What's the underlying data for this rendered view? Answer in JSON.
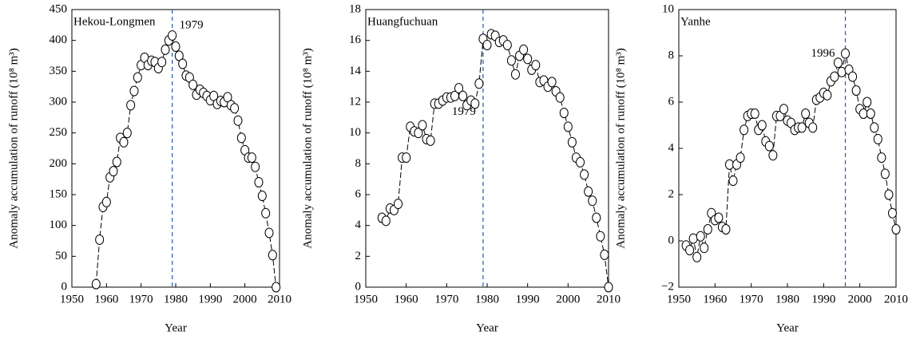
{
  "chart_data": [
    {
      "type": "line",
      "title": "Hekou-Longmen",
      "annotation": "1979",
      "vline": 1979,
      "xlabel": "Year",
      "ylabel": "Anomaly accumulation of runoff (10⁸ m³)",
      "color": "#000000",
      "xlim": [
        1950,
        2010
      ],
      "xticks": [
        1950,
        1960,
        1970,
        1980,
        1990,
        2000,
        2010
      ],
      "ylim": [
        0,
        450
      ],
      "yticks": [
        0,
        50,
        100,
        150,
        200,
        250,
        300,
        350,
        400,
        450
      ],
      "x": [
        1957,
        1958,
        1959,
        1960,
        1961,
        1962,
        1963,
        1964,
        1965,
        1966,
        1967,
        1968,
        1969,
        1970,
        1971,
        1972,
        1973,
        1974,
        1975,
        1976,
        1977,
        1978,
        1979,
        1980,
        1981,
        1982,
        1983,
        1984,
        1985,
        1986,
        1987,
        1988,
        1989,
        1990,
        1991,
        1992,
        1993,
        1994,
        1995,
        1996,
        1997,
        1998,
        1999,
        2000,
        2001,
        2002,
        2003,
        2004,
        2005,
        2006,
        2007,
        2008,
        2009
      ],
      "values": [
        5,
        77,
        130,
        138,
        178,
        188,
        203,
        242,
        235,
        250,
        295,
        318,
        340,
        360,
        372,
        360,
        367,
        365,
        355,
        365,
        385,
        400,
        408,
        390,
        375,
        362,
        343,
        340,
        328,
        312,
        320,
        315,
        310,
        303,
        310,
        297,
        302,
        300,
        308,
        295,
        290,
        270,
        242,
        222,
        210,
        210,
        195,
        170,
        148,
        120,
        88,
        52,
        0
      ]
    },
    {
      "type": "line",
      "title": "Huangfuchuan",
      "annotation": "1979",
      "vline": 1979,
      "xlabel": "Year",
      "ylabel": "Anomaly accumulation of runoff (10⁸ m³)",
      "color": "#000000",
      "xlim": [
        1950,
        2010
      ],
      "xticks": [
        1950,
        1960,
        1970,
        1980,
        1990,
        2000,
        2010
      ],
      "ylim": [
        0,
        18
      ],
      "yticks": [
        0,
        2,
        4,
        6,
        8,
        10,
        12,
        14,
        16,
        18
      ],
      "x": [
        1954,
        1955,
        1956,
        1957,
        1958,
        1959,
        1960,
        1961,
        1962,
        1963,
        1964,
        1965,
        1966,
        1967,
        1968,
        1969,
        1970,
        1971,
        1972,
        1973,
        1974,
        1975,
        1976,
        1977,
        1978,
        1979,
        1980,
        1981,
        1982,
        1983,
        1984,
        1985,
        1986,
        1987,
        1988,
        1989,
        1990,
        1991,
        1992,
        1993,
        1994,
        1995,
        1996,
        1997,
        1998,
        1999,
        2000,
        2001,
        2002,
        2003,
        2004,
        2005,
        2006,
        2007,
        2008,
        2009,
        2010
      ],
      "values": [
        4.5,
        4.3,
        5.1,
        5.0,
        5.4,
        8.4,
        8.4,
        10.4,
        10.1,
        10.0,
        10.5,
        9.6,
        9.5,
        11.9,
        11.9,
        12.1,
        12.3,
        12.3,
        12.4,
        12.9,
        12.4,
        11.8,
        12.1,
        11.9,
        13.2,
        16.1,
        15.7,
        16.4,
        16.3,
        15.9,
        16.0,
        15.7,
        14.7,
        13.8,
        15.0,
        15.4,
        14.8,
        14.1,
        14.4,
        13.3,
        13.4,
        13.0,
        13.3,
        12.7,
        12.3,
        11.3,
        10.4,
        9.4,
        8.4,
        8.1,
        7.3,
        6.2,
        5.6,
        4.5,
        3.3,
        2.1,
        0.0
      ]
    },
    {
      "type": "line",
      "title": "Yanhe",
      "annotation": "1996",
      "vline": 1996,
      "xlabel": "Year",
      "ylabel": "Anomaly accumulation of runoff (10⁸ m³)",
      "color": "#000000",
      "xlim": [
        1950,
        2010
      ],
      "xticks": [
        1950,
        1960,
        1970,
        1980,
        1990,
        2000,
        2010
      ],
      "ylim": [
        -2,
        10
      ],
      "yticks": [
        {
          "value": -2,
          "label": "−2"
        },
        0,
        2,
        4,
        6,
        8,
        10
      ],
      "x": [
        1952,
        1953,
        1954,
        1955,
        1956,
        1957,
        1958,
        1959,
        1960,
        1961,
        1962,
        1963,
        1964,
        1965,
        1966,
        1967,
        1968,
        1969,
        1970,
        1971,
        1972,
        1973,
        1974,
        1975,
        1976,
        1977,
        1978,
        1979,
        1980,
        1981,
        1982,
        1983,
        1984,
        1985,
        1986,
        1987,
        1988,
        1989,
        1990,
        1991,
        1992,
        1993,
        1994,
        1995,
        1996,
        1997,
        1998,
        1999,
        2000,
        2001,
        2002,
        2003,
        2004,
        2005,
        2006,
        2007,
        2008,
        2009,
        2010
      ],
      "values": [
        -0.2,
        -0.4,
        0.1,
        -0.7,
        0.2,
        -0.3,
        0.5,
        1.2,
        0.9,
        1.0,
        0.6,
        0.5,
        3.3,
        2.6,
        3.3,
        3.6,
        4.8,
        5.4,
        5.5,
        5.5,
        4.8,
        5.0,
        4.3,
        4.1,
        3.7,
        5.4,
        5.4,
        5.7,
        5.2,
        5.1,
        4.8,
        4.9,
        4.9,
        5.5,
        5.1,
        4.9,
        6.1,
        6.2,
        6.4,
        6.3,
        6.9,
        7.1,
        7.7,
        7.3,
        8.1,
        7.4,
        7.1,
        6.5,
        5.7,
        5.5,
        6.0,
        5.5,
        4.9,
        4.4,
        3.6,
        2.9,
        2.0,
        1.2,
        0.5
      ]
    }
  ]
}
